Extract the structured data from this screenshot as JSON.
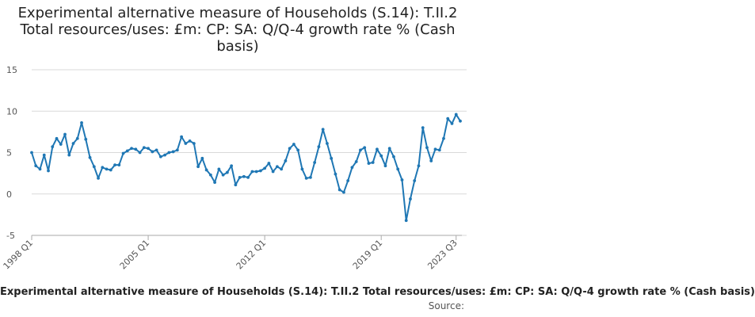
{
  "title": "Experimental alternative measure of Households (S.14): T.II.2 Total resources/uses: £m: CP: SA: Q/Q-4 growth rate % (Cash basis)",
  "legend_text": "Experimental alternative measure of Households (S.14): T.II.2 Total resources/uses: £m: CP: SA: Q/Q-4 growth rate % (Cash basis)",
  "source_label": "Source:",
  "colors": {
    "line": "#1f77b4",
    "grid": "#d9d9d9",
    "axis": "#aaaaaa",
    "text": "#555555"
  },
  "chart_data": {
    "type": "line",
    "title": "Experimental alternative measure of Households (S.14): T.II.2 Total resources/uses: £m: CP: SA: Q/Q-4 growth rate % (Cash basis)",
    "xlabel": "",
    "ylabel": "",
    "ylim": [
      -5,
      15
    ],
    "yticks": [
      -5,
      0,
      5,
      10,
      15
    ],
    "x_tick_labels": [
      "1998 Q1",
      "2005 Q1",
      "2012 Q1",
      "2019 Q1",
      "2023 Q3"
    ],
    "x_tick_indices": [
      0,
      28,
      56,
      84,
      102
    ],
    "grid": true,
    "series": [
      {
        "values": [
          5.0,
          3.4,
          3.0,
          4.7,
          2.8,
          5.7,
          6.7,
          6.0,
          7.2,
          4.7,
          6.1,
          6.7,
          8.6,
          6.6,
          4.4,
          3.3,
          1.9,
          3.2,
          3.0,
          2.9,
          3.5,
          3.5,
          4.9,
          5.2,
          5.5,
          5.4,
          5.0,
          5.6,
          5.5,
          5.1,
          5.3,
          4.5,
          4.7,
          5.0,
          5.1,
          5.3,
          6.9,
          6.1,
          6.4,
          6.1,
          3.3,
          4.3,
          2.9,
          2.3,
          1.4,
          3.0,
          2.3,
          2.6,
          3.4,
          1.1,
          2.0,
          2.1,
          2.0,
          2.7,
          2.7,
          2.8,
          3.1,
          3.7,
          2.7,
          3.3,
          3.0,
          4.0,
          5.5,
          6.0,
          5.3,
          3.0,
          1.9,
          2.0,
          3.8,
          5.7,
          7.8,
          6.1,
          4.3,
          2.4,
          0.5,
          0.2,
          1.6,
          3.2,
          3.9,
          5.3,
          5.6,
          3.7,
          3.8,
          5.4,
          4.6,
          3.4,
          5.5,
          4.5,
          3.0,
          1.7,
          -3.2,
          -0.6,
          1.6,
          3.4,
          8.0,
          5.6,
          4.0,
          5.4,
          5.3,
          6.7,
          9.1,
          8.5,
          9.6,
          8.8
        ]
      }
    ]
  }
}
